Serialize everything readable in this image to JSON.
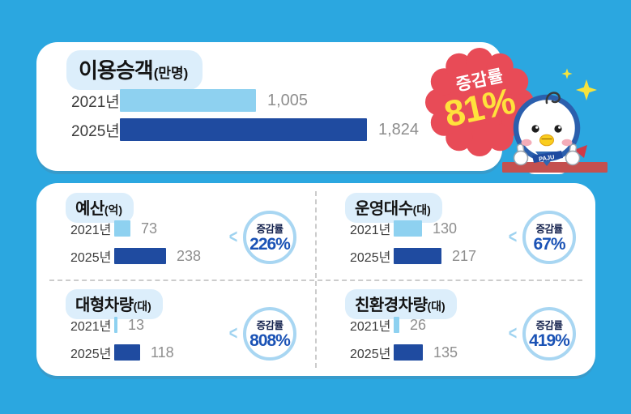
{
  "colors": {
    "background": "#2BA7E0",
    "bar_2021": "#8ED1F0",
    "bar_2025": "#1F4BA0",
    "badge_red": "#E84B57",
    "badge_value_yellow": "#FFE23C",
    "circle_border_blue": "#A8D6F2",
    "percent_blue": "#1A52B5",
    "circle_label_navy": "#14224E",
    "title_pill_bg": "#DCEEFB",
    "value_gray": "#8E8E8E",
    "mascot_shelf_red": "#C4504F"
  },
  "icons": {
    "chevron_left": "<",
    "sparkle": "✦"
  },
  "top_card": {
    "title": "이용승객",
    "unit": "(만명)",
    "rows": [
      {
        "year": "2021년",
        "value": "1,005",
        "value_num": 1005
      },
      {
        "year": "2025년",
        "value": "1,824",
        "value_num": 1824
      }
    ],
    "badge": {
      "label": "증감률",
      "value": "81%"
    }
  },
  "mascot": {
    "scarf_text": "PAJU"
  },
  "quadrants": [
    {
      "title": "예산",
      "unit": "(억)",
      "rows": [
        {
          "year": "2021년",
          "value": "73",
          "value_num": 73
        },
        {
          "year": "2025년",
          "value": "238",
          "value_num": 238
        }
      ],
      "badge": {
        "label": "증감률",
        "value": "226%"
      }
    },
    {
      "title": "운영대수",
      "unit": "(대)",
      "rows": [
        {
          "year": "2021년",
          "value": "130",
          "value_num": 130
        },
        {
          "year": "2025년",
          "value": "217",
          "value_num": 217
        }
      ],
      "badge": {
        "label": "증감률",
        "value": "67%"
      }
    },
    {
      "title": "대형차량",
      "unit": "(대)",
      "rows": [
        {
          "year": "2021년",
          "value": "13",
          "value_num": 13
        },
        {
          "year": "2025년",
          "value": "118",
          "value_num": 118
        }
      ],
      "badge": {
        "label": "증감률",
        "value": "808%"
      }
    },
    {
      "title": "친환경차량",
      "unit": "(대)",
      "rows": [
        {
          "year": "2021년",
          "value": "26",
          "value_num": 26
        },
        {
          "year": "2025년",
          "value": "135",
          "value_num": 135
        }
      ],
      "badge": {
        "label": "증감률",
        "value": "419%"
      }
    }
  ],
  "chart_data": [
    {
      "type": "bar",
      "title": "이용승객",
      "unit": "만명",
      "categories": [
        "2021년",
        "2025년"
      ],
      "values": [
        1005,
        1824
      ],
      "data_labels": [
        "1,005",
        "1,824"
      ],
      "change_rate_label": "증감률",
      "change_rate": "81%",
      "orientation": "horizontal",
      "colors": [
        "#8ED1F0",
        "#1F4BA0"
      ]
    },
    {
      "type": "bar",
      "title": "예산",
      "unit": "억",
      "categories": [
        "2021년",
        "2025년"
      ],
      "values": [
        73,
        238
      ],
      "change_rate_label": "증감률",
      "change_rate": "226%",
      "orientation": "horizontal",
      "colors": [
        "#8ED1F0",
        "#1F4BA0"
      ]
    },
    {
      "type": "bar",
      "title": "운영대수",
      "unit": "대",
      "categories": [
        "2021년",
        "2025년"
      ],
      "values": [
        130,
        217
      ],
      "change_rate_label": "증감률",
      "change_rate": "67%",
      "orientation": "horizontal",
      "colors": [
        "#8ED1F0",
        "#1F4BA0"
      ]
    },
    {
      "type": "bar",
      "title": "대형차량",
      "unit": "대",
      "categories": [
        "2021년",
        "2025년"
      ],
      "values": [
        13,
        118
      ],
      "change_rate_label": "증감률",
      "change_rate": "808%",
      "orientation": "horizontal",
      "colors": [
        "#8ED1F0",
        "#1F4BA0"
      ]
    },
    {
      "type": "bar",
      "title": "친환경차량",
      "unit": "대",
      "categories": [
        "2021년",
        "2025년"
      ],
      "values": [
        26,
        135
      ],
      "change_rate_label": "증감률",
      "change_rate": "419%",
      "orientation": "horizontal",
      "colors": [
        "#8ED1F0",
        "#1F4BA0"
      ]
    }
  ]
}
